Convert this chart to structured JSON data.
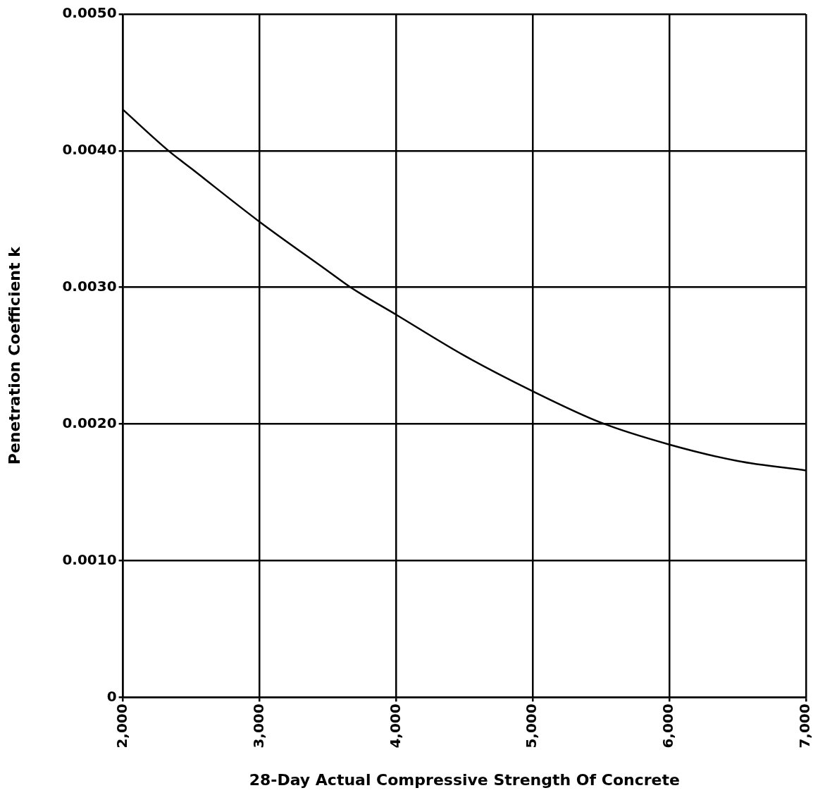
{
  "chart_data": {
    "type": "line",
    "xlabel": "28-Day Actual Compressive Strength Of Concrete",
    "ylabel": "Penetration Coefficient k",
    "x": [
      2000,
      2333,
      2500,
      3000,
      3500,
      3667,
      4000,
      4500,
      5000,
      5500,
      6000,
      6500,
      7000
    ],
    "series": [
      {
        "color": "#000000",
        "values": [
          0.0043,
          0.004,
          0.00387,
          0.00348,
          0.00312,
          0.003,
          0.0028,
          0.0025,
          0.00224,
          0.00201,
          0.00185,
          0.00173,
          0.00166
        ]
      }
    ],
    "xlim": [
      2000,
      7000
    ],
    "xticks": [
      {
        "value": 2000,
        "label": "2,000"
      },
      {
        "value": 3000,
        "label": "3,000"
      },
      {
        "value": 4000,
        "label": "4,000"
      },
      {
        "value": 5000,
        "label": "5,000"
      },
      {
        "value": 6000,
        "label": "6,000"
      },
      {
        "value": 7000,
        "label": "7,000"
      }
    ],
    "ylim": [
      0,
      0.005
    ],
    "yticks": [
      0,
      {
        "value": 0.001,
        "label": "0.0010"
      },
      {
        "value": 0.002,
        "label": "0.0020"
      },
      {
        "value": 0.003,
        "label": "0.0030"
      },
      {
        "value": 0.004,
        "label": "0.0040"
      },
      {
        "value": 0.005,
        "label": "0.0050"
      }
    ],
    "grid": true,
    "legend": false,
    "marker": "none",
    "line_style": "solid"
  }
}
